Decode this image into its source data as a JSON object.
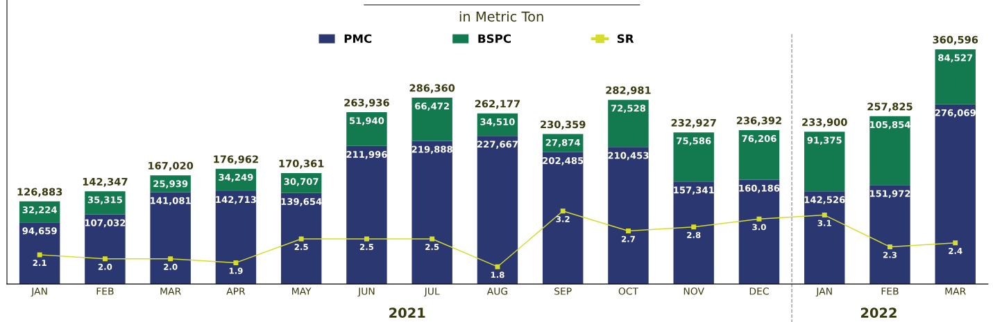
{
  "chart_data": {
    "type": "bar",
    "title": "in Metric Ton",
    "stacked": true,
    "legend": "top",
    "grid": false,
    "tick_labels": "x",
    "categories": [
      "JAN",
      "FEB",
      "MAR",
      "APR",
      "MAY",
      "JUN",
      "JUL",
      "AUG",
      "SEP",
      "OCT",
      "NOV",
      "DEC",
      "JAN",
      "FEB",
      "MAR"
    ],
    "series": [
      {
        "name": "PMC",
        "color": "#2b3770",
        "values": [
          94659,
          107032,
          141081,
          142713,
          139654,
          211996,
          219888,
          227667,
          202485,
          210453,
          157341,
          160186,
          142526,
          151972,
          276069
        ],
        "value_labels": [
          "94,659",
          "107,032",
          "141,081",
          "142,713",
          "139,654",
          "211,996",
          "219,888",
          "227,667",
          "202,485",
          "210,453",
          "157,341",
          "160,186",
          "142,526",
          "151,972",
          "276,069"
        ]
      },
      {
        "name": "BSPC",
        "color": "#137a4f",
        "values": [
          32224,
          35315,
          25939,
          34249,
          30707,
          51940,
          66472,
          34510,
          27874,
          72528,
          75586,
          76206,
          91375,
          105854,
          84527
        ],
        "value_labels": [
          "32,224",
          "35,315",
          "25,939",
          "34,249",
          "30,707",
          "51,940",
          "66,472",
          "34,510",
          "27,874",
          "72,528",
          "75,586",
          "76,206",
          "91,375",
          "105,854",
          "84,527"
        ]
      },
      {
        "name": "SR",
        "type": "line",
        "axis": "y2",
        "color": "#d6dc2c",
        "marker": "square",
        "values": [
          2.1,
          2.0,
          2.0,
          1.9,
          2.5,
          2.5,
          2.5,
          1.8,
          3.2,
          2.7,
          2.8,
          3.0,
          3.1,
          2.3,
          2.4
        ],
        "value_labels": [
          "2.1",
          "2.0",
          "2.0",
          "1.9",
          "2.5",
          "2.5",
          "2.5",
          "1.8",
          "3.2",
          "2.7",
          "2.8",
          "3.0",
          "3.1",
          "2.3",
          "2.4"
        ]
      }
    ],
    "totals": [
      "126,883",
      "142,347",
      "167,020",
      "176,962",
      "170,361",
      "263,936",
      "286,360",
      "262,177",
      "230,359",
      "282,981",
      "232,927",
      "236,392",
      "233,900",
      "257,825",
      "360,596"
    ],
    "annotations": [
      "2021",
      "2022"
    ]
  }
}
